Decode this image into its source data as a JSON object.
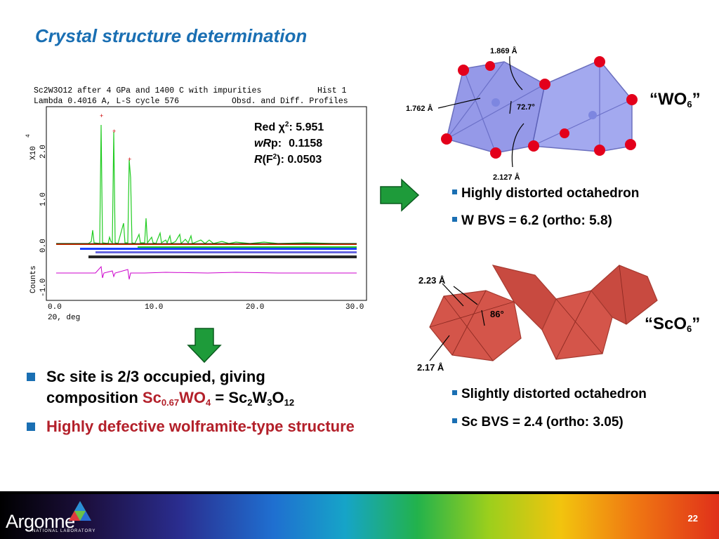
{
  "title": "Crystal structure determination",
  "plot": {
    "header_line1": "Sc2W3O12 after 4 GPa and 1400 C with impurities",
    "header_hist": "Hist  1",
    "header_line2": "Lambda 0.4016 A, L-S cycle  576",
    "header_profiles": "Obsd. and Diff. Profiles",
    "ylabel_top": "X10",
    "ylabel_exp": "4",
    "ylabel_bottom": "Counts",
    "xlabel": "2Θ, deg",
    "x_ticks": [
      "0.0",
      "10.0",
      "20.0",
      "30.0"
    ],
    "y_ticks": [
      "2.0",
      "1.0",
      "0.0",
      "-1.0"
    ],
    "stats": {
      "red_chi_label": "Red χ",
      "red_chi_sup": "2",
      "red_chi_value": ": 5.951",
      "wrp_label": "wR",
      "wrp_p": "p:",
      "wrp_value": "0.1158",
      "r_label": "R",
      "r_f": "(F",
      "r_sup": "2",
      "r_value": "):  0.0503"
    }
  },
  "wo6": {
    "label_open": "“WO",
    "label_sub": "6",
    "label_close": "”",
    "d1": "1.869 Å",
    "d2": "1.762 Å",
    "angle": "72.7°",
    "d3": "2.127 Å",
    "bullet1": "Highly distorted octahedron",
    "bullet2": "W BVS = 6.2 (ortho: 5.8)"
  },
  "sco6": {
    "label_open": "“ScO",
    "label_sub": "6",
    "label_close": "”",
    "d1": "2.23 Å",
    "angle": "86°",
    "d2": "2.17 Å",
    "bullet1": "Slightly distorted octahedron",
    "bullet2": "Sc BVS = 2.4 (ortho: 3.05)"
  },
  "left_bullets": {
    "b1_line1": "Sc site is 2/3 occupied, giving",
    "b1_line2_pre": "composition ",
    "b1_sc": "Sc",
    "b1_sc_sub": "0.67",
    "b1_wo": "WO",
    "b1_wo_sub": "4",
    "b1_eq": " = Sc",
    "b1_sub2": "2",
    "b1_w": "W",
    "b1_sub3": "3",
    "b1_o": "O",
    "b1_sub12": "12",
    "b2": "Highly defective wolframite-type structure"
  },
  "footer": {
    "logo": "Argonne",
    "logo_sub": "NATIONAL LABORATORY",
    "page": "22"
  },
  "colors": {
    "title_blue": "#1a6fb3",
    "bullet_red": "#b3202a",
    "arrow_green": "#1e9b3a",
    "wo6_fill": "#8a8ee6",
    "sco6_fill": "#d4554a",
    "oxygen_red": "#e3001b"
  }
}
